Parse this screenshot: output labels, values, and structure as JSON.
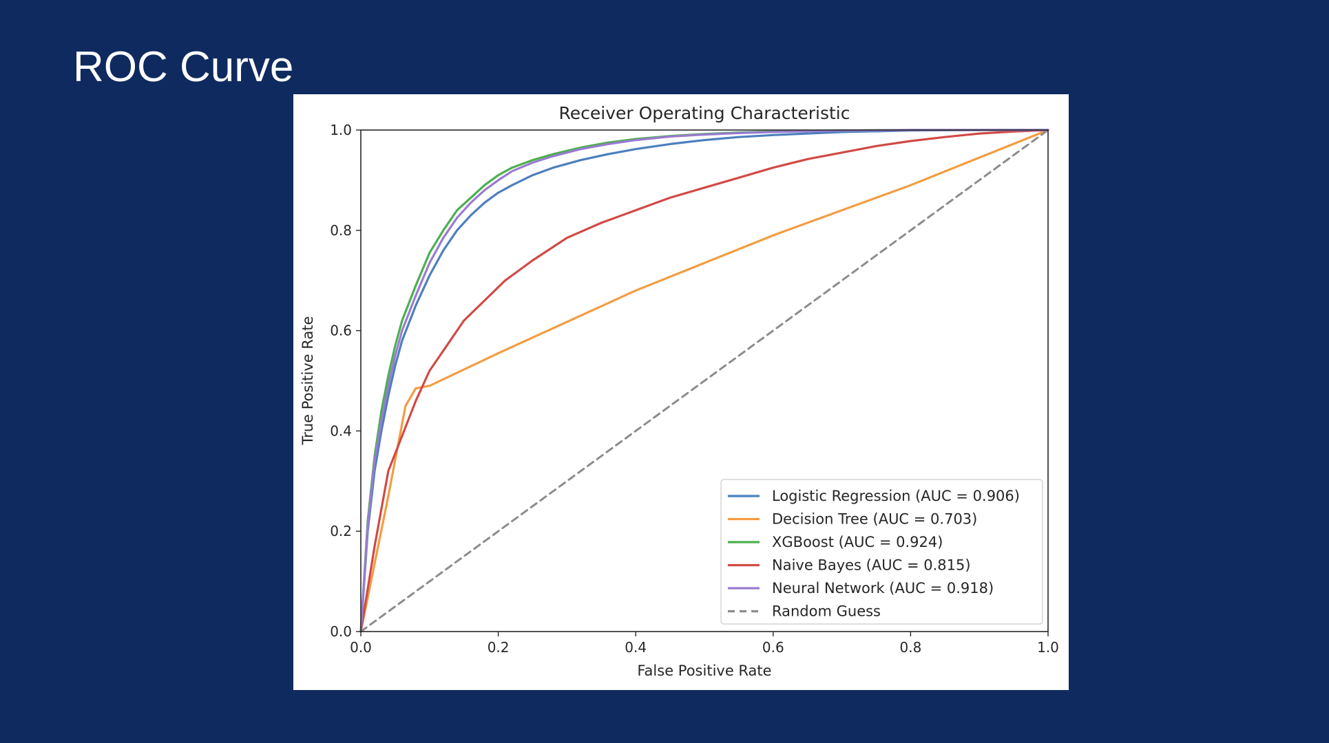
{
  "slide": {
    "title": "ROC Curve"
  },
  "chart_data": {
    "type": "line",
    "title": "Receiver Operating Characteristic",
    "xlabel": "False Positive Rate",
    "ylabel": "True Positive Rate",
    "xlim": [
      0,
      1
    ],
    "ylim": [
      0,
      1
    ],
    "xticks": [
      "0.0",
      "0.2",
      "0.4",
      "0.6",
      "0.8",
      "1.0"
    ],
    "yticks": [
      "0.0",
      "0.2",
      "0.4",
      "0.6",
      "0.8",
      "1.0"
    ],
    "grid": false,
    "legend_position": "lower-right",
    "series": [
      {
        "name": "Logistic Regression (AUC = 0.906)",
        "color": "#4c7fbd",
        "dash": false,
        "x": [
          0,
          0.01,
          0.02,
          0.03,
          0.04,
          0.05,
          0.06,
          0.08,
          0.1,
          0.12,
          0.14,
          0.16,
          0.18,
          0.2,
          0.22,
          0.25,
          0.28,
          0.32,
          0.36,
          0.4,
          0.45,
          0.5,
          0.55,
          0.6,
          0.7,
          0.8,
          0.9,
          1.0
        ],
        "y": [
          0,
          0.2,
          0.32,
          0.4,
          0.47,
          0.53,
          0.58,
          0.65,
          0.71,
          0.76,
          0.8,
          0.83,
          0.855,
          0.875,
          0.89,
          0.91,
          0.925,
          0.94,
          0.952,
          0.962,
          0.972,
          0.98,
          0.986,
          0.99,
          0.996,
          0.999,
          1.0,
          1.0
        ]
      },
      {
        "name": "Decision Tree (AUC = 0.703)",
        "color": "#f39c42",
        "dash": false,
        "x": [
          0,
          0.04,
          0.065,
          0.08,
          0.1,
          0.2,
          0.4,
          0.6,
          0.8,
          1.0
        ],
        "y": [
          0,
          0.27,
          0.45,
          0.485,
          0.49,
          0.555,
          0.68,
          0.79,
          0.89,
          1.0
        ]
      },
      {
        "name": "XGBoost (AUC = 0.924)",
        "color": "#4caf4f",
        "dash": false,
        "x": [
          0,
          0.01,
          0.02,
          0.03,
          0.04,
          0.05,
          0.06,
          0.08,
          0.1,
          0.12,
          0.14,
          0.16,
          0.18,
          0.2,
          0.22,
          0.25,
          0.28,
          0.32,
          0.36,
          0.4,
          0.45,
          0.5,
          0.55,
          0.6,
          0.7,
          0.8,
          0.9,
          1.0
        ],
        "y": [
          0,
          0.22,
          0.35,
          0.44,
          0.51,
          0.57,
          0.62,
          0.69,
          0.755,
          0.8,
          0.84,
          0.865,
          0.89,
          0.91,
          0.925,
          0.94,
          0.952,
          0.965,
          0.975,
          0.982,
          0.988,
          0.992,
          0.995,
          0.997,
          0.999,
          1.0,
          1.0,
          1.0
        ]
      },
      {
        "name": "Naive Bayes (AUC = 0.815)",
        "color": "#d04a45",
        "dash": false,
        "x": [
          0,
          0.02,
          0.04,
          0.06,
          0.08,
          0.1,
          0.12,
          0.15,
          0.18,
          0.21,
          0.25,
          0.3,
          0.35,
          0.4,
          0.45,
          0.5,
          0.55,
          0.6,
          0.65,
          0.7,
          0.75,
          0.8,
          0.85,
          0.9,
          0.95,
          1.0
        ],
        "y": [
          0,
          0.17,
          0.32,
          0.39,
          0.46,
          0.52,
          0.56,
          0.62,
          0.66,
          0.7,
          0.74,
          0.785,
          0.815,
          0.84,
          0.865,
          0.885,
          0.905,
          0.925,
          0.942,
          0.955,
          0.968,
          0.978,
          0.986,
          0.993,
          0.997,
          1.0
        ]
      },
      {
        "name": "Neural Network (AUC = 0.918)",
        "color": "#9a7bd1",
        "dash": false,
        "x": [
          0,
          0.01,
          0.02,
          0.03,
          0.04,
          0.05,
          0.06,
          0.08,
          0.1,
          0.12,
          0.14,
          0.16,
          0.18,
          0.2,
          0.22,
          0.25,
          0.28,
          0.32,
          0.36,
          0.4,
          0.45,
          0.5,
          0.55,
          0.6,
          0.7,
          0.8,
          0.9,
          1.0
        ],
        "y": [
          0,
          0.21,
          0.34,
          0.42,
          0.49,
          0.55,
          0.6,
          0.67,
          0.735,
          0.785,
          0.825,
          0.855,
          0.88,
          0.9,
          0.918,
          0.935,
          0.948,
          0.962,
          0.972,
          0.98,
          0.987,
          0.991,
          0.994,
          0.996,
          0.999,
          1.0,
          1.0,
          1.0
        ]
      },
      {
        "name": "Random Guess",
        "color": "#8c8c8c",
        "dash": true,
        "x": [
          0,
          1
        ],
        "y": [
          0,
          1
        ]
      }
    ]
  }
}
